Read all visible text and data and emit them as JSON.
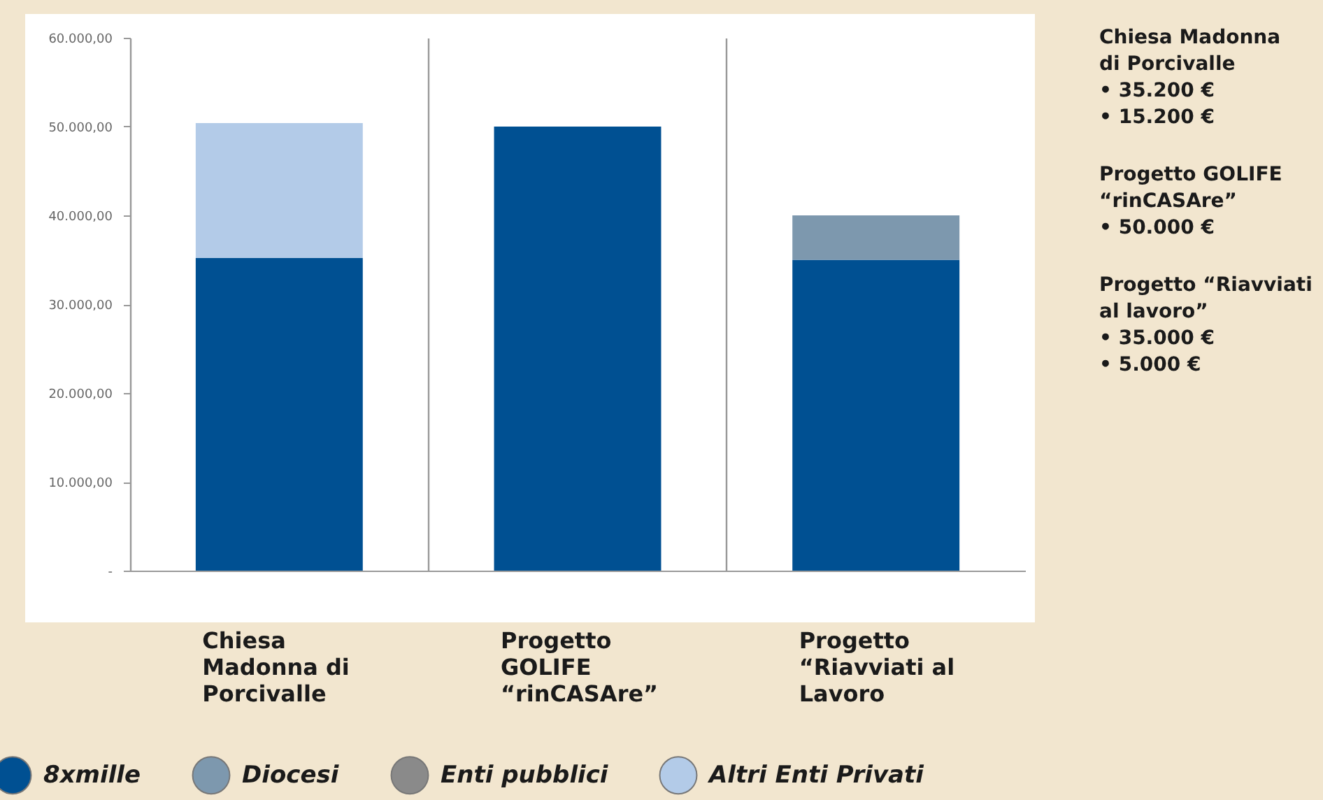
{
  "chart_data": {
    "type": "bar",
    "stacked": true,
    "categories": [
      "Chiesa\nMadonna di\nPorcivalle",
      "Progetto\nGOLIFE\n“rinCASAre”",
      "Progetto\n“Riavviati al\nLavoro"
    ],
    "series": [
      {
        "name": "8xmille",
        "color": "#005092",
        "values": [
          35200,
          50000,
          35000
        ]
      },
      {
        "name": "Diocesi",
        "color": "#7d98ae",
        "values": [
          null,
          null,
          5000
        ]
      },
      {
        "name": "Enti pubblici",
        "color": "#8a8a8a",
        "values": [
          null,
          null,
          null
        ]
      },
      {
        "name": "Altri Enti Privati",
        "color": "#b3cbe8",
        "values": [
          15200,
          null,
          null
        ]
      }
    ],
    "ylim": [
      0,
      60000
    ],
    "yticks": [
      {
        "value": 0,
        "label": "-"
      },
      {
        "value": 10000,
        "label": "10.000,00"
      },
      {
        "value": 20000,
        "label": "20.000,00"
      },
      {
        "value": 30000,
        "label": "30.000,00"
      },
      {
        "value": 40000,
        "label": "40.000,00"
      },
      {
        "value": 50000,
        "label": "50.000,00"
      },
      {
        "value": 60000,
        "label": "60.000,00"
      }
    ],
    "grid": "x",
    "legend": "bottom",
    "annotations": [
      "Chiesa Madonna\ndi Porcivalle\n• 35.200 €\n• 15.200 €",
      "Progetto GOLIFE\n“rinCASAre”\n• 50.000 €",
      "Progetto “Riavviati\nal lavoro”\n• 35.000 €\n•   5.000 €"
    ]
  }
}
